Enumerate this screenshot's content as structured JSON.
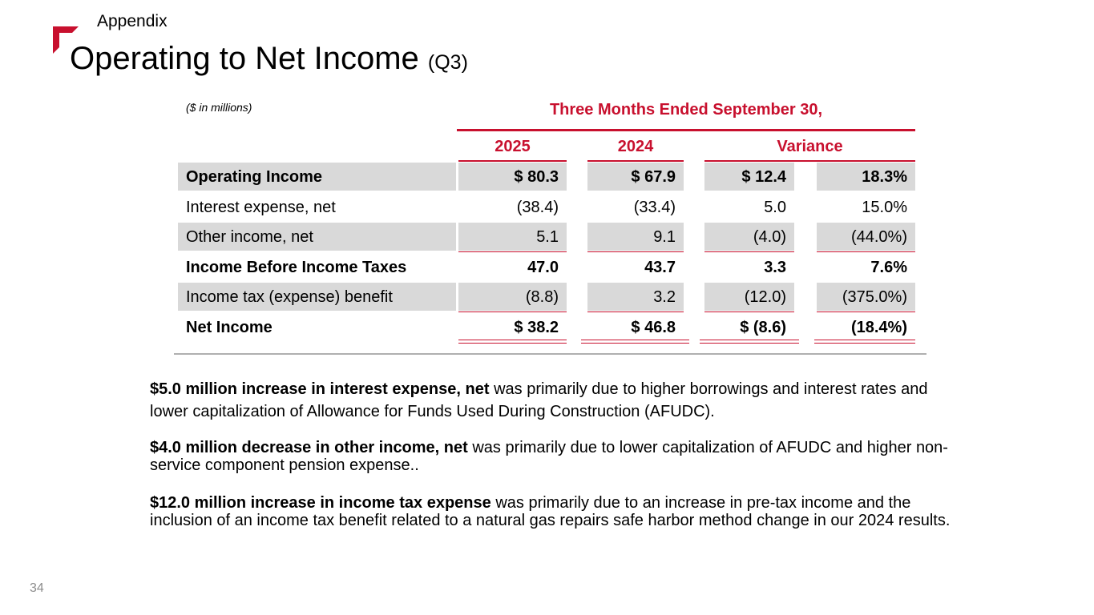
{
  "header": {
    "section": "Appendix",
    "title": "Operating to Net Income",
    "title_sub": "(Q3)",
    "accent_color": "#c8102e"
  },
  "table": {
    "units_note": "($ in millions)",
    "period_header": "Three Months Ended September 30,",
    "columns": [
      "2025",
      "2024",
      "Variance"
    ],
    "rows": [
      {
        "label": "Operating Income",
        "v2025": "$ 80.3",
        "v2024": "$ 67.9",
        "var_amt": "$ 12.4",
        "var_pct": "18.3%"
      },
      {
        "label": "Interest expense, net",
        "v2025": "(38.4)",
        "v2024": "(33.4)",
        "var_amt": "5.0",
        "var_pct": "15.0%"
      },
      {
        "label": "Other income, net",
        "v2025": "5.1",
        "v2024": "9.1",
        "var_amt": "(4.0)",
        "var_pct": "(44.0%)"
      },
      {
        "label": "Income Before Income Taxes",
        "v2025": "47.0",
        "v2024": "43.7",
        "var_amt": "3.3",
        "var_pct": "7.6%"
      },
      {
        "label": "Income tax (expense) benefit",
        "v2025": "(8.8)",
        "v2024": "3.2",
        "var_amt": "(12.0)",
        "var_pct": "(375.0%)"
      },
      {
        "label": "Net Income",
        "v2025": "$ 38.2",
        "v2024": "$ 46.8",
        "var_amt": "$ (8.6)",
        "var_pct": "(18.4%)"
      }
    ]
  },
  "notes": [
    {
      "bold": "$5.0 million increase in interest expense, net",
      "text": " was primarily due to higher borrowings and interest rates and lower capitalization of Allowance for Funds Used During Construction (AFUDC)."
    },
    {
      "bold": "$4.0 million decrease in other income, net",
      "text": " was primarily due to lower capitalization of AFUDC and higher non-service component pension expense.."
    },
    {
      "bold": "$12.0 million increase in income tax expense",
      "text": " was primarily due to an increase in pre-tax income and the inclusion of an income tax benefit related to a natural gas repairs safe harbor method change in our 2024 results."
    }
  ],
  "footer": {
    "page_number": "34"
  }
}
